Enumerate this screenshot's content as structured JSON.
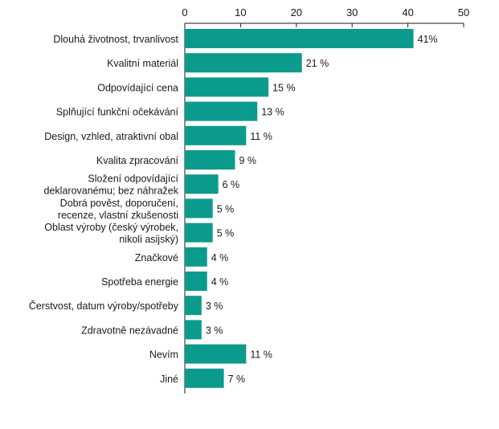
{
  "chart_data": {
    "type": "bar",
    "orientation": "horizontal",
    "title": "",
    "xlabel": "",
    "ylabel": "",
    "xlim": [
      0,
      50
    ],
    "x_ticks": [
      "0",
      "10",
      "20",
      "30",
      "40",
      "50"
    ],
    "axis_position": "top",
    "grid": false,
    "bar_color": "#0b9b8c",
    "categories": [
      [
        "Dlouhá životnost, trvanlivost"
      ],
      [
        "Kvalitní materiál"
      ],
      [
        "Odpovídající cena"
      ],
      [
        "Splňující funkční očekávání"
      ],
      [
        "Design, vzhled, atraktivní obal"
      ],
      [
        "Kvalita zpracování"
      ],
      [
        "Složení odpovídající",
        "deklarovanému; bez náhražek"
      ],
      [
        "Dobrá pověst, doporučení,",
        "recenze, vlastní zkušenosti"
      ],
      [
        "Oblast výroby (český výrobek,",
        "nikoli asijský)"
      ],
      [
        "Značkové"
      ],
      [
        "Spotřeba energie"
      ],
      [
        "Čerstvost, datum výroby/spotřeby"
      ],
      [
        "Zdravotně nezávadné"
      ],
      [
        "Nevím"
      ],
      [
        "Jiné"
      ]
    ],
    "values": [
      41,
      21,
      15,
      13,
      11,
      9,
      6,
      5,
      5,
      4,
      4,
      3,
      3,
      11,
      7
    ],
    "value_labels": [
      "41%",
      "21 %",
      "15 %",
      "13 %",
      "11 %",
      "9 %",
      "6 %",
      "5 %",
      "5 %",
      "4 %",
      "4 %",
      "3 %",
      "3 %",
      "11 %",
      "7 %"
    ]
  }
}
